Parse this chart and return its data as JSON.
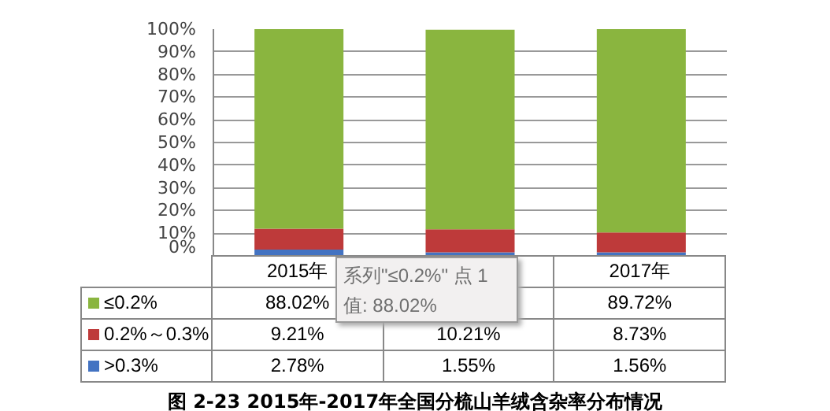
{
  "chart_data": {
    "type": "bar",
    "stacked": true,
    "title": "图 2-23  2015年-2017年全国分梳山羊绒含杂率分布情况",
    "categories": [
      "2015年",
      null,
      "2017年"
    ],
    "series": [
      {
        "name": ">0.3%",
        "color": "#4373c2",
        "values": [
          2.78,
          1.55,
          1.56
        ],
        "value_labels": [
          "2.78%",
          "1.55%",
          "1.56%"
        ]
      },
      {
        "name": "0.2%～0.3%",
        "color": "#be3a3a",
        "values": [
          9.21,
          10.21,
          8.73
        ],
        "value_labels": [
          "9.21%",
          "10.21%",
          "8.73%"
        ]
      },
      {
        "name": "≤0.2%",
        "color": "#8ab53f",
        "values": [
          88.02,
          88,
          89.72
        ],
        "value_labels": [
          "88.02%",
          null,
          "89.72%"
        ]
      }
    ],
    "ylim": [
      0,
      100
    ],
    "yticks": [
      {
        "value": 0,
        "label": "0%"
      },
      {
        "value": 10,
        "label": "10%"
      },
      {
        "value": 20,
        "label": "20%"
      },
      {
        "value": 30,
        "label": "30%"
      },
      {
        "value": 40,
        "label": "40%"
      },
      {
        "value": 50,
        "label": "50%"
      },
      {
        "value": 60,
        "label": "60%"
      },
      {
        "value": 70,
        "label": "70%"
      },
      {
        "value": 80,
        "label": "80%"
      },
      {
        "value": 90,
        "label": "90%"
      },
      {
        "value": 100,
        "label": "100%"
      }
    ],
    "grid": "y",
    "legend": "bottom",
    "annotations": [
      "系列\"≤0.2%\" 点 1",
      "值: 88.02%"
    ]
  }
}
